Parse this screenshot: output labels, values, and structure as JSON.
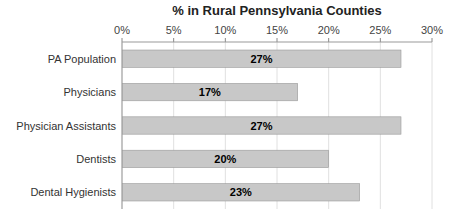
{
  "chart_data": {
    "type": "bar",
    "orientation": "horizontal",
    "title": "% in Rural Pennsylvania Counties",
    "categories": [
      "PA Population",
      "Physicians",
      "Physician Assistants",
      "Dentists",
      "Dental Hygienists"
    ],
    "values": [
      27,
      17,
      27,
      20,
      23
    ],
    "value_labels": [
      "27%",
      "17%",
      "27%",
      "20%",
      "23%"
    ],
    "data_labels": true,
    "color": "#c8c8c8",
    "xlim": [
      0,
      30
    ],
    "xticks": [
      {
        "value": 0,
        "label": "0%"
      },
      {
        "value": 5,
        "label": "5%"
      },
      {
        "value": 10,
        "label": "10%"
      },
      {
        "value": 15,
        "label": "15%"
      },
      {
        "value": 20,
        "label": "20%"
      },
      {
        "value": 25,
        "label": "25%"
      },
      {
        "value": 30,
        "label": "30%"
      }
    ],
    "grid": true
  }
}
